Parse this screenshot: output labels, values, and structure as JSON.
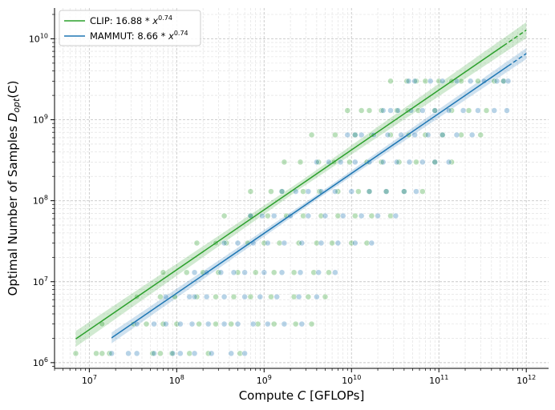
{
  "chart_data": {
    "type": "scatter",
    "x_scale": "log",
    "y_scale": "log",
    "xlabel_main": "Compute ",
    "xlabel_var": "C",
    "xlabel_unit": " [GFLOPs]",
    "ylabel_main": "Optimal Number of Samples ",
    "ylabel_var": "D",
    "ylabel_sub": "opt",
    "ylabel_arg": "(C)",
    "xlim": [
      4000000.0,
      1800000000000.0
    ],
    "ylim": [
      850000.0,
      24000000000.0
    ],
    "grid": true,
    "legend_position": "top-left",
    "x_tick_values": [
      10000000.0,
      100000000.0,
      1000000000.0,
      10000000000.0,
      100000000000.0,
      1000000000000.0
    ],
    "x_tick_exponents": [
      "7",
      "8",
      "9",
      "10",
      "11",
      "12"
    ],
    "y_tick_values": [
      1000000.0,
      10000000.0,
      100000000.0,
      1000000000.0,
      10000000000.0
    ],
    "y_tick_exponents": [
      "6",
      "7",
      "8",
      "9",
      "10"
    ],
    "tick_base": "10",
    "series": [
      {
        "name": "CLIP",
        "legend_prefix": "CLIP: 16.88",
        "legend_exponent": "0.74",
        "coef": 16.88,
        "exp": 0.74,
        "color": "#2ca02c",
        "fit_solid_range": [
          7000000.0,
          550000000000.0
        ],
        "fit_dashed_range": [
          550000000000.0,
          1000000000000.0
        ],
        "ci_factor": 1.18,
        "points": [
          [
            7000000.0,
            1300000.0
          ],
          [
            12000000.0,
            1300000.0
          ],
          [
            14000000.0,
            1300000.0
          ],
          [
            17000000.0,
            1300000.0
          ],
          [
            53000000.0,
            1300000.0
          ],
          [
            65000000.0,
            1300000.0
          ],
          [
            88000000.0,
            1300000.0
          ],
          [
            140000000.0,
            1300000.0
          ],
          [
            230000000.0,
            1300000.0
          ],
          [
            530000000.0,
            1300000.0
          ],
          [
            14000000.0,
            3000000.0
          ],
          [
            32000000.0,
            3000000.0
          ],
          [
            45000000.0,
            3000000.0
          ],
          [
            70000000.0,
            3000000.0
          ],
          [
            100000000.0,
            3000000.0
          ],
          [
            180000000.0,
            3000000.0
          ],
          [
            280000000.0,
            3000000.0
          ],
          [
            420000000.0,
            3000000.0
          ],
          [
            850000000.0,
            3000000.0
          ],
          [
            1300000000.0,
            3000000.0
          ],
          [
            2300000000.0,
            3000000.0
          ],
          [
            3500000000.0,
            3000000.0
          ],
          [
            35000000.0,
            6500000.0
          ],
          [
            65000000.0,
            6500000.0
          ],
          [
            95000000.0,
            6500000.0
          ],
          [
            170000000.0,
            6500000.0
          ],
          [
            280000000.0,
            6500000.0
          ],
          [
            450000000.0,
            6500000.0
          ],
          [
            700000000.0,
            6500000.0
          ],
          [
            1200000000.0,
            6500000.0
          ],
          [
            2200000000.0,
            6500000.0
          ],
          [
            3200000000.0,
            6500000.0
          ],
          [
            5000000000.0,
            6500000.0
          ],
          [
            70000000.0,
            13000000.0
          ],
          [
            130000000.0,
            13000000.0
          ],
          [
            200000000.0,
            13000000.0
          ],
          [
            300000000.0,
            13000000.0
          ],
          [
            500000000.0,
            13000000.0
          ],
          [
            800000000.0,
            13000000.0
          ],
          [
            1300000000.0,
            13000000.0
          ],
          [
            2200000000.0,
            13000000.0
          ],
          [
            3700000000.0,
            13000000.0
          ],
          [
            5500000000.0,
            13000000.0
          ],
          [
            170000000.0,
            30000000.0
          ],
          [
            280000000.0,
            30000000.0
          ],
          [
            370000000.0,
            30000000.0
          ],
          [
            650000000.0,
            30000000.0
          ],
          [
            1000000000.0,
            30000000.0
          ],
          [
            1500000000.0,
            30000000.0
          ],
          [
            2500000000.0,
            30000000.0
          ],
          [
            4000000000.0,
            30000000.0
          ],
          [
            6000000000.0,
            30000000.0
          ],
          [
            10000000000.0,
            30000000.0
          ],
          [
            15000000000.0,
            30000000.0
          ],
          [
            350000000.0,
            65000000.0
          ],
          [
            700000000.0,
            65000000.0
          ],
          [
            1100000000.0,
            65000000.0
          ],
          [
            1800000000.0,
            65000000.0
          ],
          [
            2800000000.0,
            65000000.0
          ],
          [
            4500000000.0,
            65000000.0
          ],
          [
            7000000000.0,
            65000000.0
          ],
          [
            11000000000.0,
            65000000.0
          ],
          [
            17000000000.0,
            65000000.0
          ],
          [
            28000000000.0,
            65000000.0
          ],
          [
            700000000.0,
            130000000.0
          ],
          [
            1200000000.0,
            130000000.0
          ],
          [
            1600000000.0,
            130000000.0
          ],
          [
            2800000000.0,
            130000000.0
          ],
          [
            4300000000.0,
            130000000.0
          ],
          [
            7000000000.0,
            130000000.0
          ],
          [
            12000000000.0,
            130000000.0
          ],
          [
            16000000000.0,
            130000000.0
          ],
          [
            25000000000.0,
            130000000.0
          ],
          [
            40000000000.0,
            130000000.0
          ],
          [
            65000000000.0,
            130000000.0
          ],
          [
            1700000000.0,
            300000000.0
          ],
          [
            2600000000.0,
            300000000.0
          ],
          [
            4200000000.0,
            300000000.0
          ],
          [
            6300000000.0,
            300000000.0
          ],
          [
            9500000000.0,
            300000000.0
          ],
          [
            15000000000.0,
            300000000.0
          ],
          [
            22000000000.0,
            300000000.0
          ],
          [
            35000000000.0,
            300000000.0
          ],
          [
            55000000000.0,
            300000000.0
          ],
          [
            90000000000.0,
            300000000.0
          ],
          [
            140000000000.0,
            300000000.0
          ],
          [
            3500000000.0,
            650000000.0
          ],
          [
            6500000000.0,
            650000000.0
          ],
          [
            11000000000.0,
            650000000.0
          ],
          [
            17000000000.0,
            650000000.0
          ],
          [
            28000000000.0,
            650000000.0
          ],
          [
            45000000000.0,
            650000000.0
          ],
          [
            70000000000.0,
            650000000.0
          ],
          [
            110000000000.0,
            650000000.0
          ],
          [
            180000000000.0,
            650000000.0
          ],
          [
            300000000000.0,
            650000000.0
          ],
          [
            9000000000.0,
            1300000000.0
          ],
          [
            13000000000.0,
            1300000000.0
          ],
          [
            16000000000.0,
            1300000000.0
          ],
          [
            22000000000.0,
            1300000000.0
          ],
          [
            33000000000.0,
            1300000000.0
          ],
          [
            44000000000.0,
            1300000000.0
          ],
          [
            58000000000.0,
            1300000000.0
          ],
          [
            90000000000.0,
            1300000000.0
          ],
          [
            140000000000.0,
            1300000000.0
          ],
          [
            220000000000.0,
            1300000000.0
          ],
          [
            350000000000.0,
            1300000000.0
          ],
          [
            28000000000.0,
            3000000000.0
          ],
          [
            43000000000.0,
            3000000000.0
          ],
          [
            55000000000.0,
            3000000000.0
          ],
          [
            70000000000.0,
            3000000000.0
          ],
          [
            100000000000.0,
            3000000000.0
          ],
          [
            140000000000.0,
            3000000000.0
          ],
          [
            180000000000.0,
            3000000000.0
          ],
          [
            280000000000.0,
            3000000000.0
          ],
          [
            430000000000.0,
            3000000000.0
          ],
          [
            550000000000.0,
            3000000000.0
          ]
        ]
      },
      {
        "name": "MAMMUT",
        "legend_prefix": "MAMMUT: 8.66",
        "legend_exponent": "0.74",
        "coef": 8.66,
        "exp": 0.74,
        "color": "#1f77b4",
        "fit_solid_range": [
          18000000.0,
          620000000000.0
        ],
        "fit_dashed_range": [
          620000000000.0,
          1000000000000.0
        ],
        "ci_factor": 1.12,
        "points": [
          [
            18000000.0,
            1300000.0
          ],
          [
            28000000.0,
            1300000.0
          ],
          [
            35000000.0,
            1300000.0
          ],
          [
            55000000.0,
            1300000.0
          ],
          [
            90000000.0,
            1300000.0
          ],
          [
            110000000.0,
            1300000.0
          ],
          [
            160000000.0,
            1300000.0
          ],
          [
            250000000.0,
            1300000.0
          ],
          [
            420000000.0,
            1300000.0
          ],
          [
            600000000.0,
            1300000.0
          ],
          [
            35000000.0,
            3000000.0
          ],
          [
            55000000.0,
            3000000.0
          ],
          [
            75000000.0,
            3000000.0
          ],
          [
            110000000.0,
            3000000.0
          ],
          [
            150000000.0,
            3000000.0
          ],
          [
            230000000.0,
            3000000.0
          ],
          [
            350000000.0,
            3000000.0
          ],
          [
            500000000.0,
            3000000.0
          ],
          [
            750000000.0,
            3000000.0
          ],
          [
            1100000000.0,
            3000000.0
          ],
          [
            1700000000.0,
            3000000.0
          ],
          [
            2700000000.0,
            3000000.0
          ],
          [
            75000000.0,
            6500000.0
          ],
          [
            140000000.0,
            6500000.0
          ],
          [
            160000000.0,
            6500000.0
          ],
          [
            220000000.0,
            6500000.0
          ],
          [
            350000000.0,
            6500000.0
          ],
          [
            600000000.0,
            6500000.0
          ],
          [
            900000000.0,
            6500000.0
          ],
          [
            1400000000.0,
            6500000.0
          ],
          [
            2500000000.0,
            6500000.0
          ],
          [
            4000000000.0,
            6500000.0
          ],
          [
            160000000.0,
            13000000.0
          ],
          [
            220000000.0,
            13000000.0
          ],
          [
            320000000.0,
            13000000.0
          ],
          [
            450000000.0,
            13000000.0
          ],
          [
            600000000.0,
            13000000.0
          ],
          [
            1000000000.0,
            13000000.0
          ],
          [
            1600000000.0,
            13000000.0
          ],
          [
            2600000000.0,
            13000000.0
          ],
          [
            4200000000.0,
            13000000.0
          ],
          [
            6500000000.0,
            13000000.0
          ],
          [
            350000000.0,
            30000000.0
          ],
          [
            500000000.0,
            30000000.0
          ],
          [
            750000000.0,
            30000000.0
          ],
          [
            1100000000.0,
            30000000.0
          ],
          [
            1700000000.0,
            30000000.0
          ],
          [
            2700000000.0,
            30000000.0
          ],
          [
            4500000000.0,
            30000000.0
          ],
          [
            7000000000.0,
            30000000.0
          ],
          [
            11000000000.0,
            30000000.0
          ],
          [
            17000000000.0,
            30000000.0
          ],
          [
            700000000.0,
            65000000.0
          ],
          [
            950000000.0,
            65000000.0
          ],
          [
            1300000000.0,
            65000000.0
          ],
          [
            2000000000.0,
            65000000.0
          ],
          [
            3200000000.0,
            65000000.0
          ],
          [
            5000000000.0,
            65000000.0
          ],
          [
            8000000000.0,
            65000000.0
          ],
          [
            13000000000.0,
            65000000.0
          ],
          [
            20000000000.0,
            65000000.0
          ],
          [
            32000000000.0,
            65000000.0
          ],
          [
            1600000000.0,
            130000000.0
          ],
          [
            2300000000.0,
            130000000.0
          ],
          [
            3200000000.0,
            130000000.0
          ],
          [
            4500000000.0,
            130000000.0
          ],
          [
            6500000000.0,
            130000000.0
          ],
          [
            10000000000.0,
            130000000.0
          ],
          [
            16000000000.0,
            130000000.0
          ],
          [
            25000000000.0,
            130000000.0
          ],
          [
            40000000000.0,
            130000000.0
          ],
          [
            55000000000.0,
            130000000.0
          ],
          [
            4000000000.0,
            300000000.0
          ],
          [
            5500000000.0,
            300000000.0
          ],
          [
            7500000000.0,
            300000000.0
          ],
          [
            11000000000.0,
            300000000.0
          ],
          [
            16000000000.0,
            300000000.0
          ],
          [
            23000000000.0,
            300000000.0
          ],
          [
            33000000000.0,
            300000000.0
          ],
          [
            46000000000.0,
            300000000.0
          ],
          [
            65000000000.0,
            300000000.0
          ],
          [
            90000000000.0,
            300000000.0
          ],
          [
            130000000000.0,
            300000000.0
          ],
          [
            9000000000.0,
            650000000.0
          ],
          [
            11000000000.0,
            650000000.0
          ],
          [
            13000000000.0,
            650000000.0
          ],
          [
            18000000000.0,
            650000000.0
          ],
          [
            26000000000.0,
            650000000.0
          ],
          [
            37000000000.0,
            650000000.0
          ],
          [
            53000000000.0,
            650000000.0
          ],
          [
            75000000000.0,
            650000000.0
          ],
          [
            110000000000.0,
            650000000.0
          ],
          [
            160000000000.0,
            650000000.0
          ],
          [
            240000000000.0,
            650000000.0
          ],
          [
            23000000000.0,
            1300000000.0
          ],
          [
            28000000000.0,
            1300000000.0
          ],
          [
            34000000000.0,
            1300000000.0
          ],
          [
            48000000000.0,
            1300000000.0
          ],
          [
            65000000000.0,
            1300000000.0
          ],
          [
            90000000000.0,
            1300000000.0
          ],
          [
            130000000000.0,
            1300000000.0
          ],
          [
            190000000000.0,
            1300000000.0
          ],
          [
            280000000000.0,
            1300000000.0
          ],
          [
            430000000000.0,
            1300000000.0
          ],
          [
            600000000000.0,
            1300000000.0
          ],
          [
            45000000000.0,
            3000000000.0
          ],
          [
            53000000000.0,
            3000000000.0
          ],
          [
            80000000000.0,
            3000000000.0
          ],
          [
            110000000000.0,
            3000000000.0
          ],
          [
            160000000000.0,
            3000000000.0
          ],
          [
            230000000000.0,
            3000000000.0
          ],
          [
            330000000000.0,
            3000000000.0
          ],
          [
            460000000000.0,
            3000000000.0
          ],
          [
            550000000000.0,
            3000000000.0
          ],
          [
            620000000000.0,
            3000000000.0
          ]
        ]
      }
    ]
  }
}
